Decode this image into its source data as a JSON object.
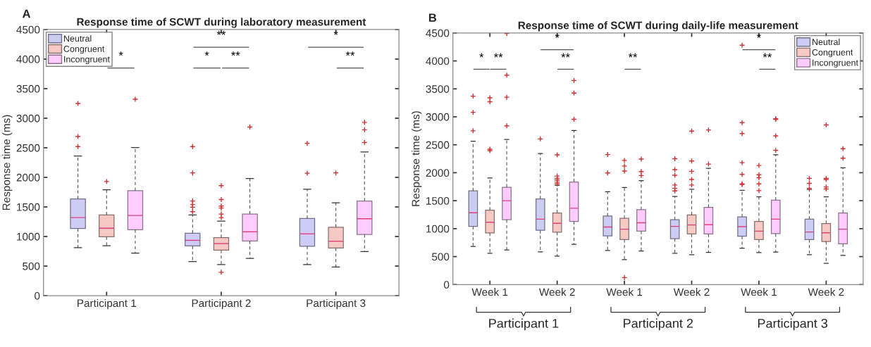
{
  "chart_data": [
    {
      "type": "box",
      "title": "Response time of SCWT during laboratory measurement",
      "ylabel": "Response time (ms)",
      "categories": [
        "Participant 1",
        "Participant 2",
        "Participant 3"
      ],
      "series": [
        {
          "name": "Neutral",
          "color": "#ccccf5",
          "boxes": [
            {
              "low": 810,
              "q1": 1135,
              "median": 1320,
              "q3": 1635,
              "high": 2360,
              "outliers": [
                2520,
                2690,
                3250
              ]
            },
            {
              "low": 575,
              "q1": 840,
              "median": 935,
              "q3": 1055,
              "high": 1365,
              "outliers": [
                1420,
                1495,
                1540,
                1600,
                2075,
                2520
              ]
            },
            {
              "low": 525,
              "q1": 835,
              "median": 1045,
              "q3": 1305,
              "high": 1800,
              "outliers": [
                2070,
                2575
              ]
            }
          ]
        },
        {
          "name": "Congruent",
          "color": "#f7c9c4",
          "boxes": [
            {
              "low": 845,
              "q1": 995,
              "median": 1140,
              "q3": 1365,
              "high": 1790,
              "outliers": [
                1930
              ]
            },
            {
              "low": 525,
              "q1": 770,
              "median": 880,
              "q3": 980,
              "high": 1260,
              "outliers": [
                395,
                1320,
                1380,
                1480,
                1515,
                1625,
                1860
              ]
            },
            {
              "low": 485,
              "q1": 805,
              "median": 920,
              "q3": 1155,
              "high": 1570,
              "outliers": [
                2075
              ]
            }
          ]
        },
        {
          "name": "Incongruent",
          "color": "#ffccff",
          "boxes": [
            {
              "low": 720,
              "q1": 1115,
              "median": 1355,
              "q3": 1775,
              "high": 2505,
              "outliers": [
                3320
              ]
            },
            {
              "low": 630,
              "q1": 925,
              "median": 1080,
              "q3": 1380,
              "high": 1980,
              "outliers": [
                2850
              ]
            },
            {
              "low": 745,
              "q1": 1035,
              "median": 1300,
              "q3": 1600,
              "high": 2430,
              "outliers": [
                2590,
                2805,
                2930
              ]
            }
          ]
        }
      ],
      "ylim": [
        0,
        4500
      ],
      "yticks": [
        0,
        500,
        1000,
        1500,
        2000,
        2500,
        3000,
        3500,
        4000,
        4500
      ],
      "legend": "top left",
      "grid": false,
      "marker": "cross",
      "annotations": [
        "A",
        "*",
        "**",
        "*",
        "**",
        "*",
        "**"
      ]
    },
    {
      "type": "box",
      "title": "Response time of SCWT during daily-life measurement",
      "ylabel": "Response time (ms)",
      "categories": [
        "Week 1",
        "Week 2",
        "Week 1",
        "Week 2",
        "Week 1",
        "Week 2"
      ],
      "series": [
        {
          "name": "Neutral",
          "color": "#ccccf5",
          "boxes": [
            {
              "low": 680,
              "q1": 1040,
              "median": 1285,
              "q3": 1675,
              "high": 2565,
              "outliers": [
                2750,
                3080,
                3370
              ]
            },
            {
              "low": 585,
              "q1": 970,
              "median": 1170,
              "q3": 1530,
              "high": 2345,
              "outliers": [
                2605
              ]
            },
            {
              "low": 610,
              "q1": 870,
              "median": 1030,
              "q3": 1225,
              "high": 1660,
              "outliers": [
                1995,
                2325
              ]
            },
            {
              "low": 560,
              "q1": 820,
              "median": 1040,
              "q3": 1160,
              "high": 1575,
              "outliers": [
                1675,
                1720,
                1780,
                1955,
                2055,
                2250
              ]
            },
            {
              "low": 650,
              "q1": 865,
              "median": 1035,
              "q3": 1210,
              "high": 1685,
              "outliers": [
                1790,
                1800,
                1970,
                2180,
                2700,
                2895,
                4280
              ]
            },
            {
              "low": 535,
              "q1": 805,
              "median": 940,
              "q3": 1170,
              "high": 1700,
              "outliers": [
                1720,
                1810,
                1900
              ]
            }
          ]
        },
        {
          "name": "Congruent",
          "color": "#f7c9c4",
          "boxes": [
            {
              "low": 560,
              "q1": 925,
              "median": 1115,
              "q3": 1330,
              "high": 1905,
              "outliers": [
                2395,
                2420,
                3270,
                3340
              ]
            },
            {
              "low": 510,
              "q1": 935,
              "median": 1095,
              "q3": 1280,
              "high": 1775,
              "outliers": [
                1800,
                1830,
                1870,
                1900,
                1940,
                2320
              ]
            },
            {
              "low": 445,
              "q1": 805,
              "median": 990,
              "q3": 1185,
              "high": 1735,
              "outliers": [
                125,
                2030,
                2120,
                2220
              ]
            },
            {
              "low": 535,
              "q1": 905,
              "median": 1065,
              "q3": 1245,
              "high": 1705,
              "outliers": [
                1780,
                1880,
                2025,
                2210,
                2745
              ]
            },
            {
              "low": 570,
              "q1": 805,
              "median": 955,
              "q3": 1130,
              "high": 1570,
              "outliers": [
                1680,
                1800,
                1910,
                1965,
                2130
              ]
            },
            {
              "low": 380,
              "q1": 770,
              "median": 925,
              "q3": 1090,
              "high": 1570,
              "outliers": [
                1710,
                1745,
                1880,
                1900,
                2855
              ]
            }
          ]
        },
        {
          "name": "Incongruent",
          "color": "#ffccff",
          "boxes": [
            {
              "low": 620,
              "q1": 1160,
              "median": 1500,
              "q3": 1740,
              "high": 2595,
              "outliers": [
                2840,
                3350,
                3745,
                4490
              ]
            },
            {
              "low": 720,
              "q1": 1130,
              "median": 1365,
              "q3": 1835,
              "high": 2755,
              "outliers": [
                2955,
                3425,
                3650
              ]
            },
            {
              "low": 600,
              "q1": 955,
              "median": 1105,
              "q3": 1340,
              "high": 1860,
              "outliers": [
                1950,
                2020,
                2245
              ]
            },
            {
              "low": 575,
              "q1": 905,
              "median": 1070,
              "q3": 1380,
              "high": 2080,
              "outliers": [
                2155,
                2765
              ]
            },
            {
              "low": 580,
              "q1": 910,
              "median": 1170,
              "q3": 1510,
              "high": 2320,
              "outliers": [
                2400,
                2660,
                2955,
                2965
              ]
            },
            {
              "low": 520,
              "q1": 730,
              "median": 990,
              "q3": 1280,
              "high": 2090,
              "outliers": [
                2260,
                2430
              ]
            }
          ]
        }
      ],
      "ylim": [
        0,
        4500
      ],
      "yticks": [
        0,
        500,
        1000,
        1500,
        2000,
        2500,
        3000,
        3500,
        4000,
        4500
      ],
      "legend": "top right",
      "grid": false,
      "marker": "cross",
      "annotations": [
        "B",
        "*",
        "**",
        "*",
        "**",
        "**",
        "*",
        "**",
        "Participant 1",
        "Participant 2",
        "Participant 3"
      ]
    }
  ]
}
